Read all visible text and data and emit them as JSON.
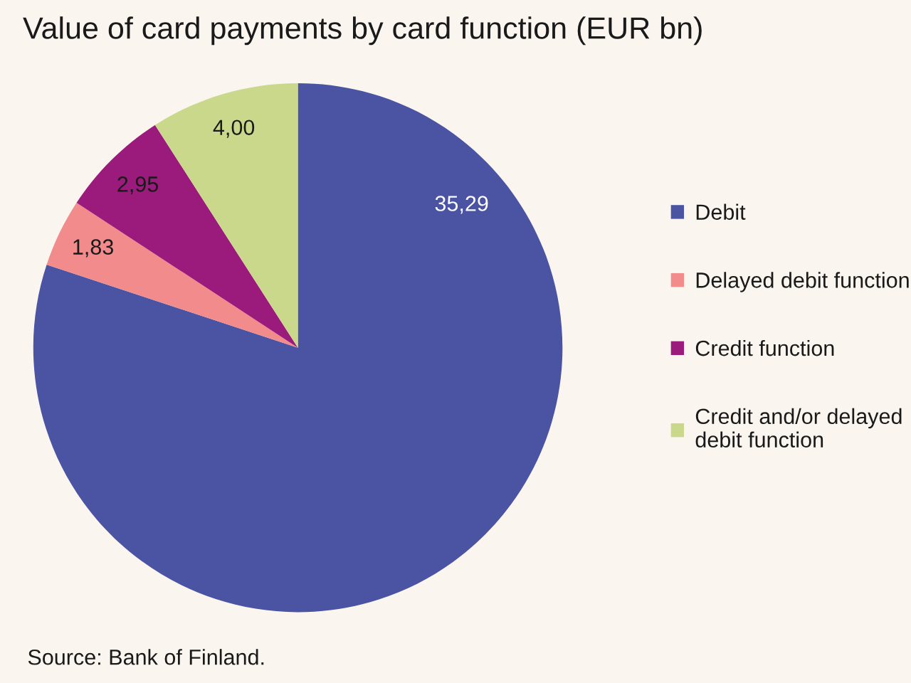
{
  "chart_data": {
    "type": "pie",
    "title": "Value of card payments by card function (EUR bn)",
    "categories": [
      "Debit",
      "Delayed debit function",
      "Credit function",
      "Credit and/or delayed\ndebit function"
    ],
    "values": [
      35.29,
      1.83,
      2.95,
      4.0
    ],
    "value_labels": [
      "35,29",
      "1,83",
      "2,95",
      "4,00"
    ],
    "colors": [
      "#4b53a3",
      "#f28b8c",
      "#9b1b7c",
      "#cad88b"
    ],
    "legend": "right",
    "annotations": [
      "Source: Bank of Finland."
    ]
  }
}
